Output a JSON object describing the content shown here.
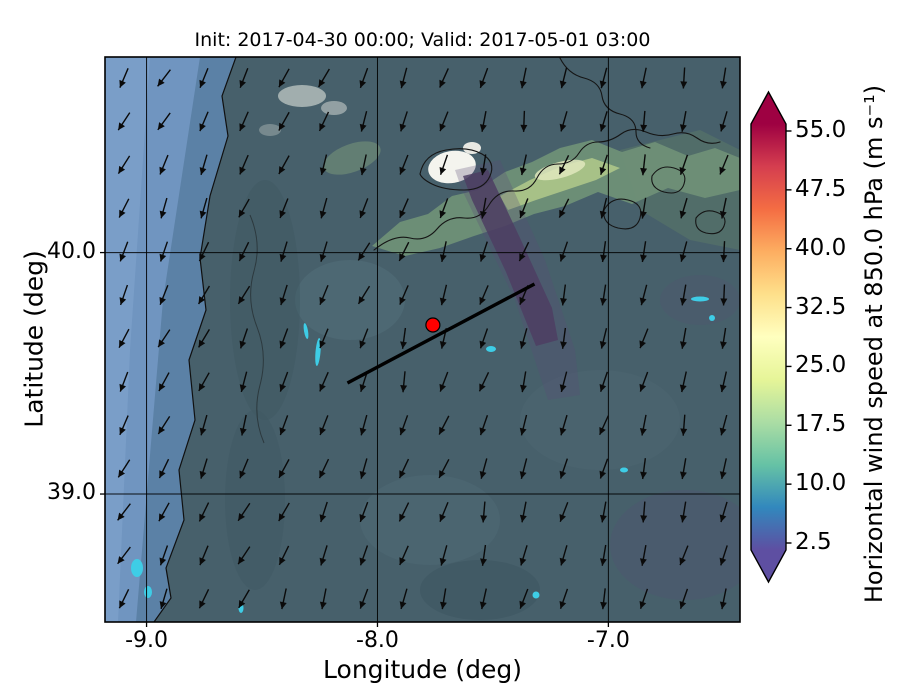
{
  "figure": {
    "title": "Init: 2017-04-30 00:00; Valid: 2017-05-01 03:00"
  },
  "chart_data": {
    "type": "heatmap",
    "title": "Init: 2017-04-30 00:00; Valid: 2017-05-01 03:00",
    "xlabel": "Longitude (deg)",
    "ylabel": "Latitude (deg)",
    "xlim": [
      -9.18,
      -6.43
    ],
    "ylim": [
      38.47,
      40.81
    ],
    "xticks": [
      -9.0,
      -8.0,
      -7.0
    ],
    "xtick_labels": [
      "-9.0",
      "-8.0",
      "-7.0"
    ],
    "yticks": [
      39.0,
      40.0
    ],
    "ytick_labels": [
      "39.0",
      "40.0"
    ],
    "grid": true,
    "field": "horizontal wind speed at 850.0 hPa",
    "map_base_colors": {
      "ocean": "#5b81a6",
      "ocean_light": "#7296c1",
      "land": "#47606b"
    },
    "colorbar": {
      "label": "Horizontal wind speed at 850.0 hPa (m s⁻¹)",
      "ticks": [
        2.5,
        10.0,
        17.5,
        25.0,
        32.5,
        40.0,
        47.5,
        55.0
      ],
      "tick_labels": [
        "2.5",
        "10.0",
        "17.5",
        "25.0",
        "32.5",
        "40.0",
        "47.5",
        "55.0"
      ],
      "colormap": "Spectral_r",
      "extend": "both",
      "colors_low_to_high": [
        "#5e4fa2",
        "#3288bd",
        "#66c2a5",
        "#abdda4",
        "#e6f598",
        "#ffffbf",
        "#fee08b",
        "#fdae61",
        "#f46d43",
        "#d53e4f",
        "#9e0142"
      ]
    },
    "overlays": {
      "cross_section_line": {
        "from": [
          -8.13,
          39.46
        ],
        "to": [
          -7.32,
          39.87
        ],
        "color": "#000000"
      },
      "marker": {
        "lon": -7.76,
        "lat": 39.7,
        "color": "#ff0000"
      },
      "wind_arrows": {
        "glyph": "arrow",
        "pointing": "south-southwest"
      }
    }
  }
}
